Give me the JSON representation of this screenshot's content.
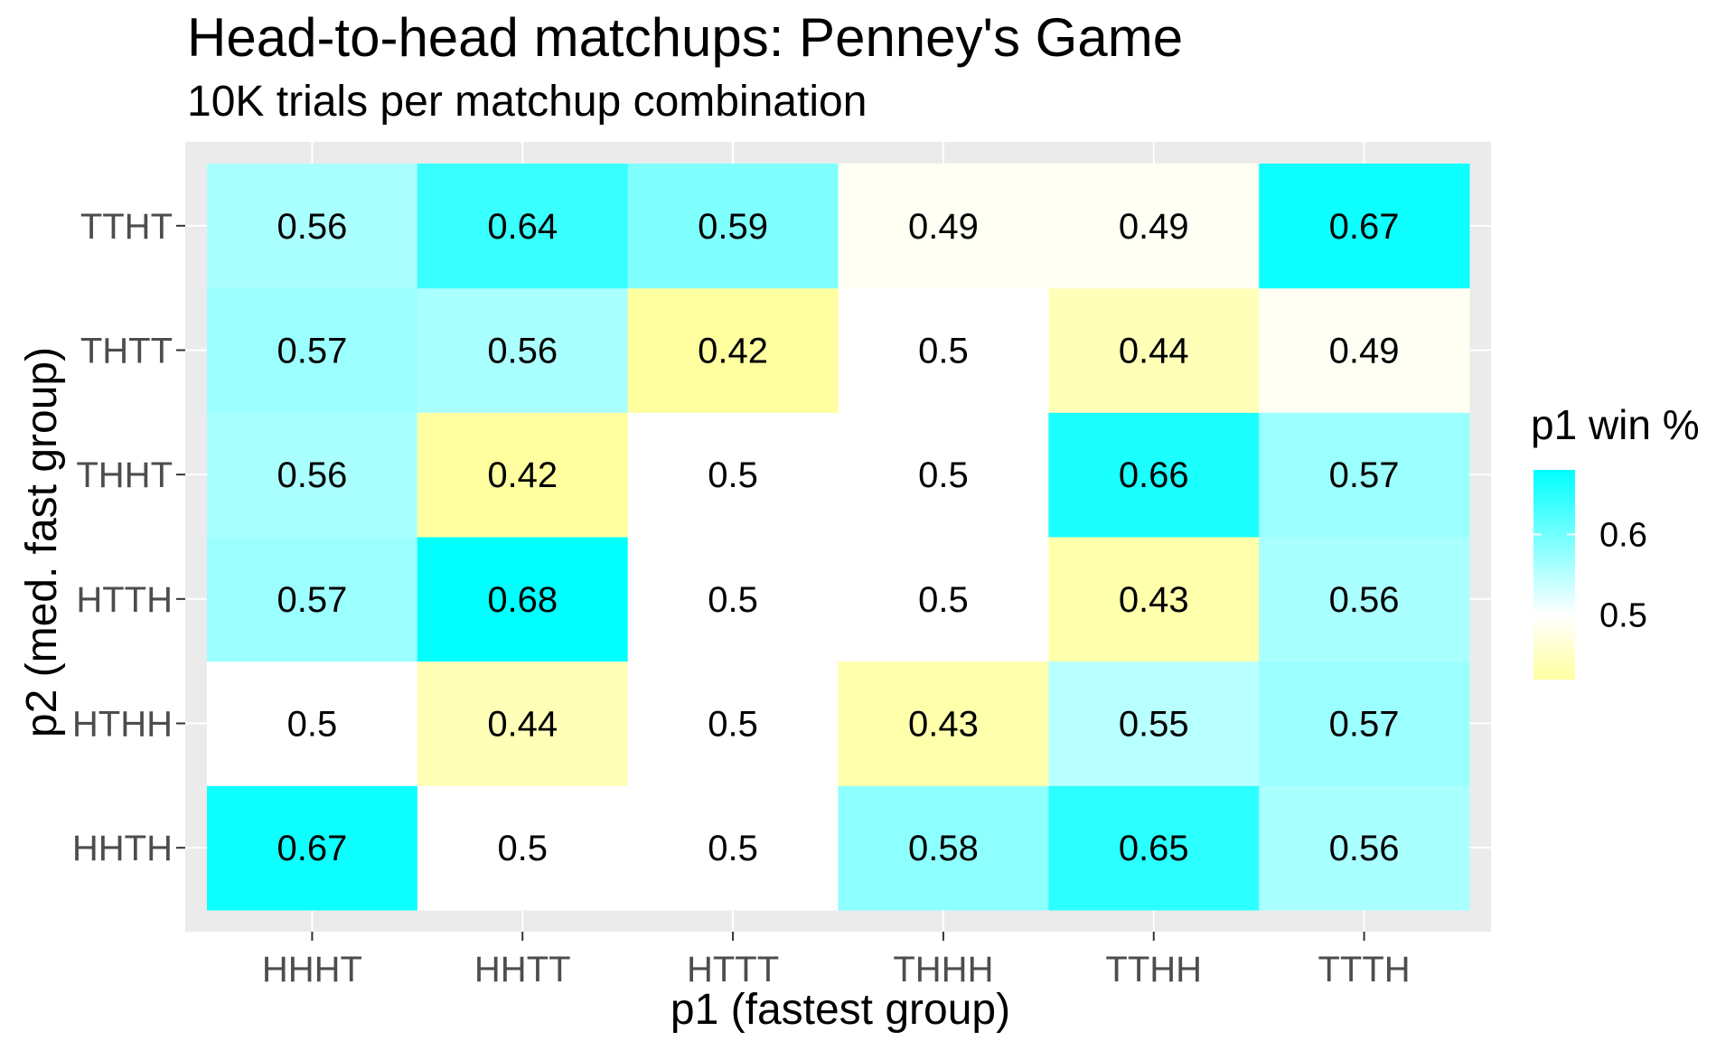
{
  "chart_data": {
    "type": "heatmap",
    "title": "Head-to-head matchups: Penney's Game",
    "subtitle": "10K trials per matchup combination",
    "xlabel": "p1 (fastest group)",
    "ylabel": "p2 (med. fast group)",
    "x_categories": [
      "HHHT",
      "HHTT",
      "HTTT",
      "THHH",
      "TTHH",
      "TTTH"
    ],
    "y_categories": [
      "HHTH",
      "HTHH",
      "HTTH",
      "THHT",
      "THTT",
      "TTHT"
    ],
    "values": [
      [
        0.67,
        0.5,
        0.5,
        0.58,
        0.65,
        0.56
      ],
      [
        0.5,
        0.44,
        0.5,
        0.43,
        0.55,
        0.57
      ],
      [
        0.57,
        0.68,
        0.5,
        0.5,
        0.43,
        0.56
      ],
      [
        0.56,
        0.42,
        0.5,
        0.5,
        0.66,
        0.57
      ],
      [
        0.57,
        0.56,
        0.42,
        0.5,
        0.44,
        0.49
      ],
      [
        0.56,
        0.64,
        0.59,
        0.49,
        0.49,
        0.67
      ]
    ],
    "legend": {
      "title": "p1 win %",
      "position": "right",
      "breaks": [
        0.5,
        0.6
      ],
      "break_labels": [
        "0.5",
        "0.6"
      ],
      "low_color": "#ffffa0",
      "mid_color": "#ffffff",
      "high_color": "#00ffff",
      "low_value": 0.42,
      "mid_value": 0.5,
      "high_value": 0.68
    },
    "panel_background": "#ebebeb",
    "grid_color": "#ffffff"
  }
}
